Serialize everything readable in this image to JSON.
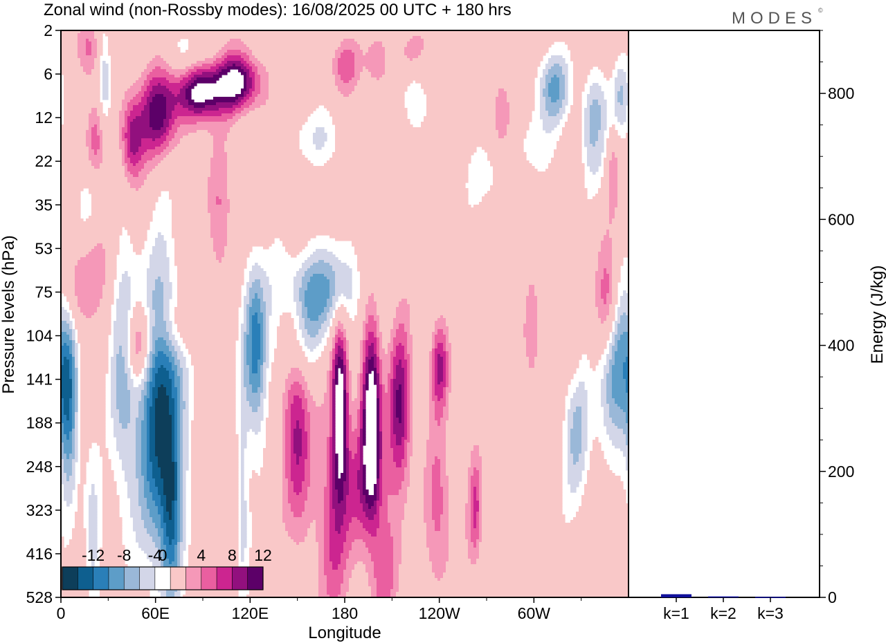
{
  "header": {
    "title": "Zonal wind (non-Rossby modes):  16/08/2025  00 UTC  + 180 hrs",
    "brand": "MODES",
    "brand_mark": "©"
  },
  "chart_data": [
    {
      "type": "heatmap",
      "title": "Zonal wind (non-Rossby modes):  16/08/2025  00 UTC  + 180 hrs",
      "xlabel": "Longitude",
      "ylabel": "Pressure levels (hPa)",
      "x_ticks": [
        "0",
        "60E",
        "120E",
        "180",
        "120W",
        "60W"
      ],
      "x_tick_degrees": [
        0,
        60,
        120,
        180,
        240,
        300
      ],
      "x_range_degrees": [
        0,
        360
      ],
      "y_ticks": [
        "2",
        "6",
        "12",
        "22",
        "35",
        "53",
        "75",
        "104",
        "141",
        "188",
        "248",
        "323",
        "416",
        "528"
      ],
      "colorbar": {
        "tick_labels": [
          "-12",
          "-8",
          "-4",
          "0",
          "4",
          "8",
          "12"
        ],
        "levels": [
          -14,
          -12,
          -10,
          -8,
          -6,
          -4,
          -2,
          2,
          4,
          6,
          8,
          10,
          12,
          14
        ],
        "colors": [
          "#0d3e5a",
          "#0e5f8f",
          "#2a7fb8",
          "#5d9dc8",
          "#9ab8d8",
          "#d3d6e8",
          "#ffffff",
          "#f9c8c8",
          "#f598b8",
          "#ea5fa0",
          "#cc2590",
          "#92107e",
          "#5c0068"
        ]
      },
      "features": [
        {
          "sign": "negative",
          "lon": 64,
          "level": "141-188",
          "peak": -14
        },
        {
          "sign": "negative",
          "lon": 4,
          "level": "188",
          "peak": -8
        },
        {
          "sign": "negative",
          "lon": 125,
          "level": "104-141",
          "peak": -10
        },
        {
          "sign": "negative",
          "lon": 350,
          "level": "141",
          "peak": -8
        },
        {
          "sign": "negative",
          "lon": 320,
          "level": "6",
          "peak": -8
        },
        {
          "sign": "positive",
          "lon": 175,
          "level": "141-188",
          "peak": 14
        },
        {
          "sign": "positive",
          "lon": 196,
          "level": "141-188",
          "peak": 14
        },
        {
          "sign": "positive",
          "lon": 150,
          "level": "188",
          "peak": 8
        },
        {
          "sign": "positive",
          "lon": 95,
          "level": "6-12",
          "peak": 14
        },
        {
          "sign": "positive",
          "lon": 348,
          "level": "75-104",
          "peak": 8
        }
      ]
    },
    {
      "type": "bar",
      "categories": [
        "k=1",
        "k=2",
        "k=3"
      ],
      "values": [
        5,
        1.5,
        0.8
      ],
      "ylabel": "Energy (J/kg)",
      "ylim": [
        0,
        900
      ],
      "y_ticks": [
        0,
        200,
        400,
        600,
        800
      ],
      "bar_color": "#10109a"
    }
  ]
}
